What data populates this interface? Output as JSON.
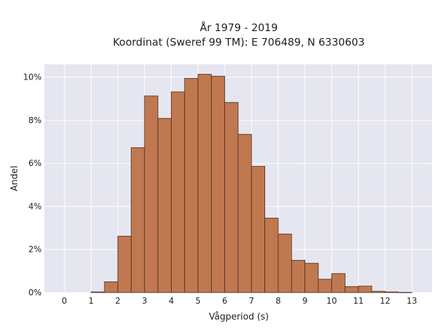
{
  "chart_data": {
    "type": "bar",
    "title": "År 1979 - 2019",
    "subtitle": "Koordinat (Sweref 99 TM): E 706489, N 6330603",
    "xlabel": "Vågperiod (s)",
    "ylabel": "Andel",
    "xlim": [
      -0.75,
      13.75
    ],
    "ylim": [
      0,
      10.6
    ],
    "xticks": [
      0,
      1,
      2,
      3,
      4,
      5,
      6,
      7,
      8,
      9,
      10,
      11,
      12,
      13
    ],
    "xtick_labels": [
      "0",
      "1",
      "2",
      "3",
      "4",
      "5",
      "6",
      "7",
      "8",
      "9",
      "10",
      "11",
      "12",
      "13"
    ],
    "yticks": [
      0,
      2,
      4,
      6,
      8,
      10
    ],
    "ytick_labels": [
      "0%",
      "2%",
      "4%",
      "6%",
      "8%",
      "10%"
    ],
    "bin_width": 0.5,
    "bin_starts": [
      1.0,
      1.5,
      2.0,
      2.5,
      3.0,
      3.5,
      4.0,
      4.5,
      5.0,
      5.5,
      6.0,
      6.5,
      7.0,
      7.5,
      8.0,
      8.5,
      9.0,
      9.5,
      10.0,
      10.5,
      11.0,
      11.5,
      12.0,
      12.5
    ],
    "values": [
      0.03,
      0.5,
      2.62,
      6.73,
      9.13,
      8.09,
      9.32,
      9.95,
      10.14,
      10.05,
      8.83,
      7.35,
      5.86,
      3.46,
      2.72,
      1.5,
      1.36,
      0.62,
      0.88,
      0.28,
      0.3,
      0.06,
      0.03,
      0.01
    ],
    "grid": true,
    "colors": {
      "bar_fill": "#c07850",
      "bar_edge": "#4a2a18",
      "plot_background": "#e5e6f0",
      "grid": "#ffffff"
    }
  }
}
